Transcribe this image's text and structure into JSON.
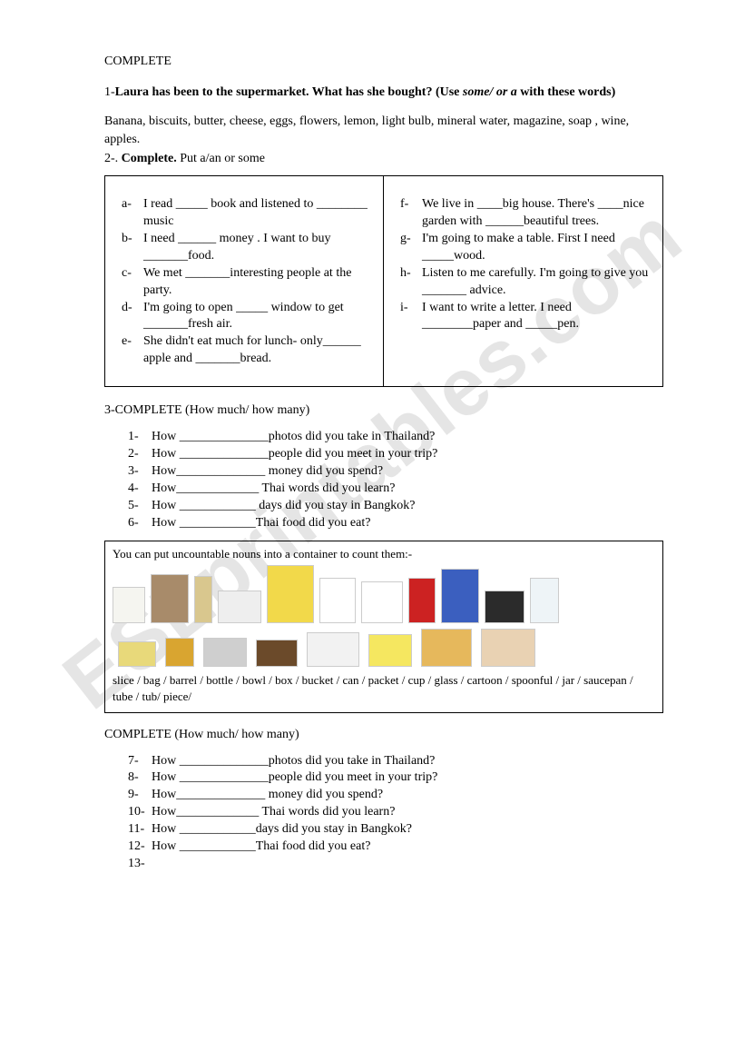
{
  "header": "COMPLETE",
  "q1": {
    "prefix": "1-",
    "bold_a": "Laura has been to the supermarket. What has she bought? (Use ",
    "italic": "some/ or a ",
    "bold_b": " with these words)",
    "words": "Banana, biscuits, butter, cheese, eggs, flowers, lemon, light bulb, mineral water, magazine, soap , wine, apples."
  },
  "q2": {
    "prefix": " 2-. ",
    "bold": "Complete.",
    "rest": " Put a/an or some"
  },
  "left_items": [
    {
      "m": "a-",
      "t": "I read _____ book and listened to ________ music"
    },
    {
      "m": "b-",
      "t": "I need ______ money . I want to buy _______food."
    },
    {
      "m": "c-",
      "t": "We met _______interesting people at the party."
    },
    {
      "m": "d-",
      "t": "I'm going to open _____ window to get _______fresh air."
    },
    {
      "m": "e-",
      "t": "She didn't eat much for lunch- only______ apple and _______bread."
    }
  ],
  "right_items": [
    {
      "m": "f-",
      "t": "We live in ____big house. There's ____nice garden with ______beautiful trees."
    },
    {
      "m": "g-",
      "t": "I'm going to make a table. First  I need _____wood."
    },
    {
      "m": "h-",
      "t": "Listen to me carefully. I'm going to give you _______ advice."
    },
    {
      "m": "i-",
      "t": " I want to write a letter. I need ________paper and _____pen."
    }
  ],
  "q3": {
    "title": "3-COMPLETE (How much/ how many)",
    "items": [
      {
        "m": "1-",
        "t": "How ______________photos did you take in Thailand?"
      },
      {
        "m": "2-",
        "t": "How ______________people did you meet in your trip?"
      },
      {
        "m": "3-",
        "t": "How______________ money did you spend?"
      },
      {
        "m": "4-",
        "t": "How_____________ Thai words did you learn?"
      },
      {
        "m": "5-",
        "t": "How ____________ days did you stay in Bangkok?"
      },
      {
        "m": "6-",
        "t": "How ____________Thai food did you eat?"
      }
    ]
  },
  "container": {
    "caption": "You can put uncountable nouns into a container to count them:-",
    "icons_row1": [
      {
        "name": "money-bag",
        "w": 34,
        "h": 38,
        "bg": "#f5f5f0"
      },
      {
        "name": "barrel",
        "w": 40,
        "h": 52,
        "bg": "#a88b6a"
      },
      {
        "name": "bottle",
        "w": 18,
        "h": 50,
        "bg": "#d9c78e"
      },
      {
        "name": "bowl",
        "w": 46,
        "h": 34,
        "bg": "#eeeeee"
      },
      {
        "name": "cornflakes-box",
        "w": 50,
        "h": 62,
        "bg": "#f2d94a"
      },
      {
        "name": "rooster",
        "w": 38,
        "h": 48,
        "bg": "#ffffff"
      },
      {
        "name": "water-bucket",
        "w": 44,
        "h": 44,
        "bg": "#ffffff"
      },
      {
        "name": "coke-can",
        "w": 28,
        "h": 48,
        "bg": "#cc2222"
      },
      {
        "name": "milk-carton",
        "w": 40,
        "h": 58,
        "bg": "#3b5fbf"
      },
      {
        "name": "coffee-cup",
        "w": 42,
        "h": 34,
        "bg": "#2b2b2b"
      },
      {
        "name": "glass",
        "w": 30,
        "h": 48,
        "bg": "#eef4f7"
      }
    ],
    "icons_row2": [
      {
        "name": "butter",
        "w": 40,
        "h": 26,
        "bg": "#e8d97a"
      },
      {
        "name": "honey-jar",
        "w": 30,
        "h": 30,
        "bg": "#d9a530"
      },
      {
        "name": "saucepan",
        "w": 46,
        "h": 30,
        "bg": "#cfcfcf"
      },
      {
        "name": "pipe",
        "w": 44,
        "h": 28,
        "bg": "#6b4a2a"
      },
      {
        "name": "sugar-bag",
        "w": 56,
        "h": 36,
        "bg": "#f2f2f2"
      },
      {
        "name": "margarine-tub",
        "w": 46,
        "h": 34,
        "bg": "#f5e760"
      },
      {
        "name": "pizza-slice",
        "w": 54,
        "h": 40,
        "bg": "#e6b85c"
      },
      {
        "name": "chicken-piece",
        "w": 58,
        "h": 40,
        "bg": "#e9d2b3"
      }
    ],
    "words": "slice /  bag /  barrel / bottle /  bowl / box / bucket / can / packet / cup / glass / cartoon  / spoonful / jar / saucepan / tube / tub/ piece/"
  },
  "q4": {
    "title": "COMPLETE (How much/ how many)",
    "items": [
      {
        "m": "7-",
        "t": "How ______________photos did you take in Thailand?"
      },
      {
        "m": "8-",
        "t": "How ______________people did you meet in your trip?"
      },
      {
        "m": "9-",
        "t": "How______________ money did you spend?"
      },
      {
        "m": "10-",
        "t": "How_____________ Thai words did you learn?"
      },
      {
        "m": "11-",
        "t": "How ____________days did you stay in Bangkok?"
      },
      {
        "m": "12-",
        "t": "How ____________Thai food did you eat?"
      },
      {
        "m": "13-",
        "t": ""
      }
    ]
  }
}
